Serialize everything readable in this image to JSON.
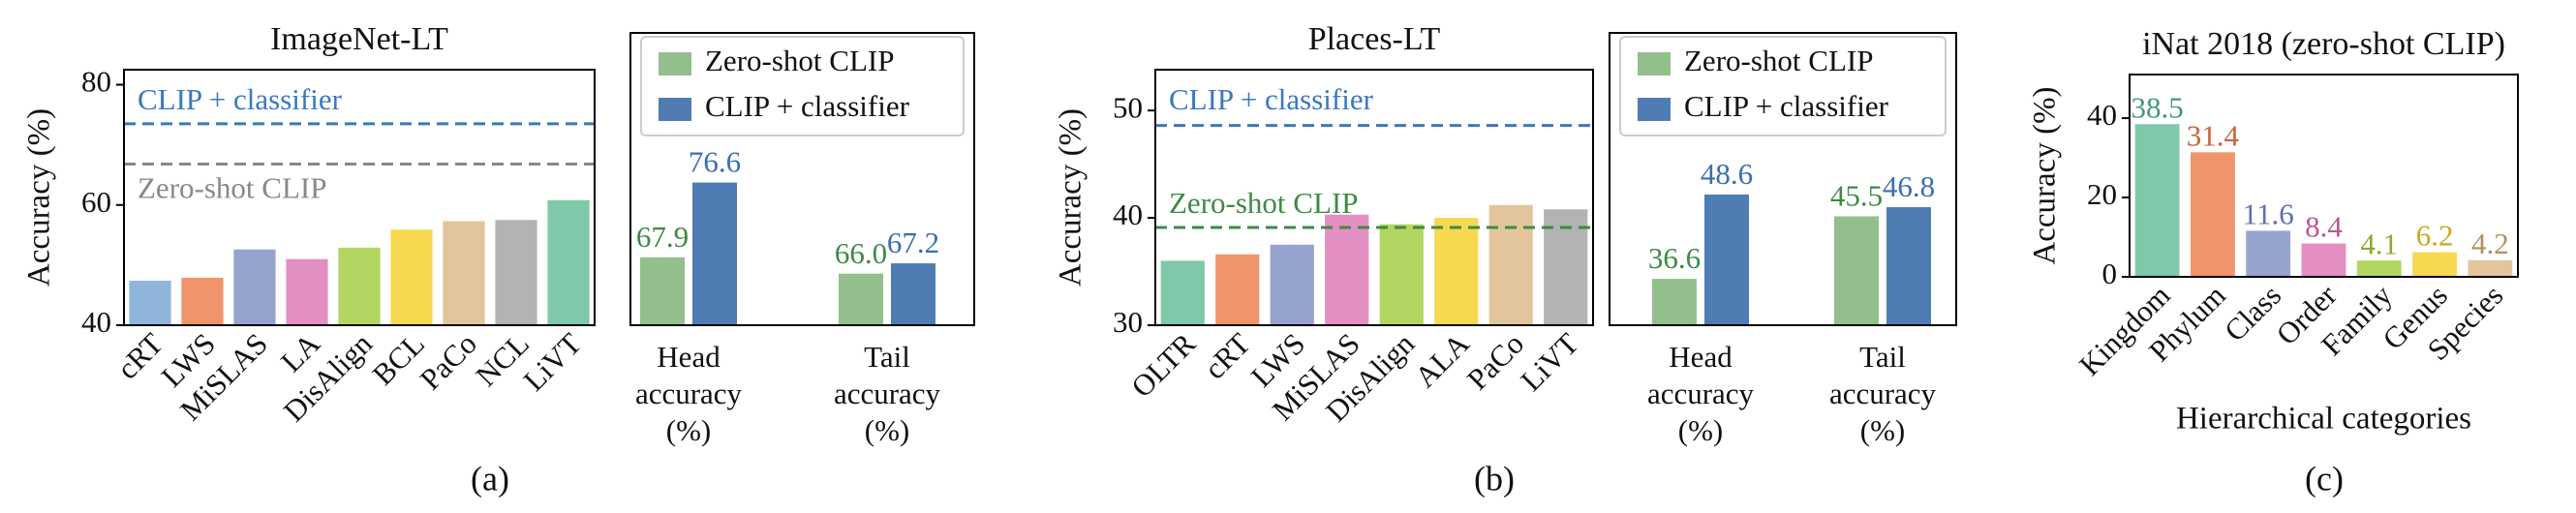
{
  "chart_data": [
    {
      "type": "bar",
      "title": "ImageNet-LT",
      "y_label": "Accuracy (%)",
      "categories": [
        "cRT",
        "LWS",
        "MiSLAS",
        "LA",
        "DisAlign",
        "BCL",
        "PaCo",
        "NCL",
        "LiVT"
      ],
      "values": [
        47.4,
        47.9,
        52.6,
        51.0,
        52.9,
        55.9,
        57.3,
        57.5,
        60.8
      ],
      "colors": [
        "#8fb5db",
        "#f0956b",
        "#97a3cf",
        "#e48fc1",
        "#b3d662",
        "#f6d94f",
        "#e2c59c",
        "#b3b3b3",
        "#7fc8a9"
      ],
      "ylim": [
        40,
        82.5
      ],
      "yticks": [
        40,
        60,
        80
      ],
      "reference_lines": [
        {
          "label": "CLIP + classifier",
          "value": 73.5,
          "color": "#3a78c0"
        },
        {
          "label": "Zero-shot CLIP",
          "value": 66.8,
          "color": "#888888"
        }
      ]
    },
    {
      "type": "grouped_bar",
      "panel_label": "(a)",
      "categories": [
        [
          "Head",
          "accuracy",
          "(%)"
        ],
        [
          "Tail",
          "accuracy",
          "(%)"
        ]
      ],
      "series": [
        {
          "name": "Zero-shot CLIP",
          "color": "#93bf8c",
          "label_color": "#3d8b44",
          "values": [
            67.9,
            66.0
          ],
          "value_labels": [
            "67.9",
            "66.0"
          ]
        },
        {
          "name": "CLIP + classifier",
          "color": "#4f7db3",
          "label_color": "#3a6fb0",
          "values": [
            76.6,
            67.2
          ],
          "value_labels": [
            "76.6",
            "67.2"
          ]
        }
      ],
      "ylim": [
        60,
        94
      ],
      "legend": "top"
    },
    {
      "type": "bar",
      "title": "Places-LT",
      "y_label": "Accuracy (%)",
      "categories": [
        "OLTR",
        "cRT",
        "LWS",
        "MiSLAS",
        "DisAlign",
        "ALA",
        "PaCo",
        "LiVT"
      ],
      "values": [
        36.0,
        36.6,
        37.5,
        40.3,
        39.4,
        40.0,
        41.2,
        40.8
      ],
      "colors": [
        "#7fc8a9",
        "#f0956b",
        "#97a3cf",
        "#e48fc1",
        "#b3d662",
        "#f6d94f",
        "#e2c59c",
        "#b3b3b3"
      ],
      "ylim": [
        30,
        53.8
      ],
      "yticks": [
        30,
        40,
        50
      ],
      "reference_lines": [
        {
          "label": "CLIP + classifier",
          "value": 48.6,
          "color": "#3a78c0"
        },
        {
          "label": "Zero-shot CLIP",
          "value": 39.1,
          "color": "#3e8a45"
        }
      ]
    },
    {
      "type": "grouped_bar",
      "panel_label": "(b)",
      "categories": [
        [
          "Head",
          "accuracy",
          "(%)"
        ],
        [
          "Tail",
          "accuracy",
          "(%)"
        ]
      ],
      "series": [
        {
          "name": "Zero-shot CLIP",
          "color": "#93bf8c",
          "label_color": "#3d8b44",
          "values": [
            36.6,
            45.5
          ],
          "value_labels": [
            "36.6",
            "45.5"
          ]
        },
        {
          "name": "CLIP + classifier",
          "color": "#4f7db3",
          "label_color": "#3a6fb0",
          "values": [
            48.6,
            46.8
          ],
          "value_labels": [
            "48.6",
            "46.8"
          ]
        }
      ],
      "ylim": [
        30,
        71.6
      ],
      "legend": "top"
    },
    {
      "type": "bar",
      "title": "iNat 2018 (zero-shot CLIP)",
      "y_label": "Accuracy (%)",
      "x_label": "Hierarchical categories",
      "panel_label": "(c)",
      "categories": [
        "Kingdom",
        "Phylum",
        "Class",
        "Order",
        "Family",
        "Genus",
        "Species"
      ],
      "values": [
        38.5,
        31.4,
        11.6,
        8.4,
        4.1,
        6.2,
        4.2
      ],
      "colors": [
        "#7fc8a9",
        "#f0956b",
        "#97a3cf",
        "#e48fc1",
        "#b3d662",
        "#f6d94f",
        "#e2c59c"
      ],
      "label_colors": [
        "#3f9a78",
        "#c9633a",
        "#5f6fb0",
        "#b55a94",
        "#8aaa2e",
        "#c9a91e",
        "#b0925f"
      ],
      "ylim": [
        0,
        51
      ],
      "yticks": [
        0,
        20,
        40
      ],
      "show_values": true
    }
  ]
}
